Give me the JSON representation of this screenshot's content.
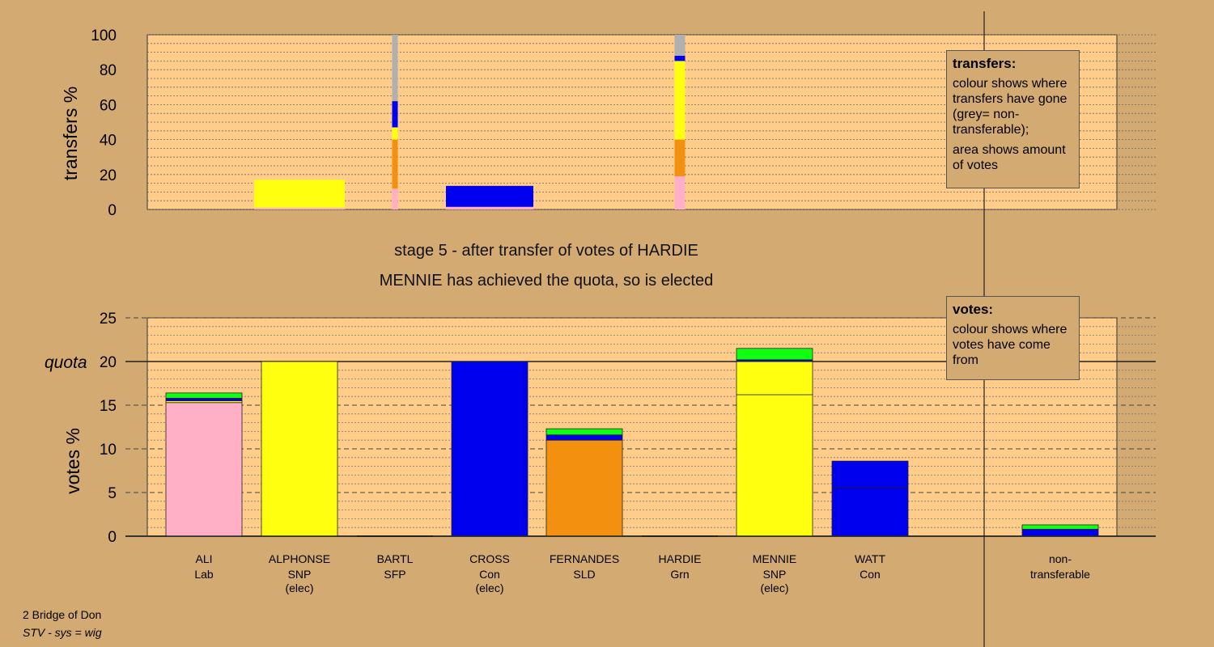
{
  "headline": {
    "stage": "stage 5 - after transfer of votes of HARDIE",
    "status": "MENNIE has achieved the quota, so is elected"
  },
  "footer": {
    "ward": "2 Bridge of Don",
    "system": "STV - sys = wig"
  },
  "legend_transfers": {
    "title": "transfers:",
    "line1": "colour shows where transfers have gone (grey= non-transferable);",
    "line2": "area shows amount of votes"
  },
  "legend_votes": {
    "title": "votes:",
    "line1": "colour shows where votes have come from"
  },
  "colors": {
    "Lab": "#ffb0c6",
    "SNP": "#ffff10",
    "SFP": "#f49010",
    "Con": "#0000ee",
    "SLD": "#f49010",
    "Grn": "#10ff10",
    "nontransferable": "#b0b0b0",
    "plot_bg": "#ffcc8a",
    "page_bg": "#d4aa73"
  },
  "chart_data": [
    {
      "type": "bar",
      "title": "",
      "ylabel": "transfers %",
      "ylim": [
        0,
        100
      ],
      "yticks": [
        0,
        20,
        40,
        60,
        80,
        100
      ],
      "note": "stacked bars; colour shows destination of transfers",
      "bars": [
        {
          "candidate": "ALPHONSE",
          "segments": [
            {
              "party": "Lab",
              "value": 1
            },
            {
              "party": "SNP",
              "value": 16
            }
          ]
        },
        {
          "candidate": "BARTL",
          "segments": [
            {
              "party": "Lab",
              "value": 12
            },
            {
              "party": "SLD",
              "value": 28
            },
            {
              "party": "SNP",
              "value": 7
            },
            {
              "party": "Con",
              "value": 15
            },
            {
              "party": "nontransferable",
              "value": 38
            }
          ]
        },
        {
          "candidate": "CROSS",
          "segments": [
            {
              "party": "Lab",
              "value": 1.5
            },
            {
              "party": "Con",
              "value": 12
            }
          ]
        },
        {
          "candidate": "HARDIE",
          "segments": [
            {
              "party": "Lab",
              "value": 19
            },
            {
              "party": "SLD",
              "value": 21
            },
            {
              "party": "SNP",
              "value": 45
            },
            {
              "party": "Con",
              "value": 3
            },
            {
              "party": "nontransferable",
              "value": 12
            }
          ]
        }
      ]
    },
    {
      "type": "bar",
      "title": "",
      "ylabel": "votes %",
      "ylim": [
        0,
        25
      ],
      "yticks": [
        0,
        5,
        10,
        15,
        20,
        25
      ],
      "quota": 20,
      "quota_label": "quota",
      "categories": [
        {
          "name": "ALI",
          "party": "Lab",
          "note": ""
        },
        {
          "name": "ALPHONSE",
          "party": "SNP",
          "note": "(elec)"
        },
        {
          "name": "BARTL",
          "party": "SFP",
          "note": ""
        },
        {
          "name": "CROSS",
          "party": "Con",
          "note": "(elec)"
        },
        {
          "name": "FERNANDES",
          "party": "SLD",
          "note": ""
        },
        {
          "name": "HARDIE",
          "party": "Grn",
          "note": ""
        },
        {
          "name": "MENNIE",
          "party": "SNP",
          "note": "(elec)"
        },
        {
          "name": "WATT",
          "party": "Con",
          "note": ""
        },
        {
          "name": "non-",
          "party": "transferable",
          "note": ""
        }
      ],
      "stacks": [
        [
          {
            "party": "Lab",
            "value": 15.3
          },
          {
            "party": "SNP",
            "value": 0.2
          },
          {
            "party": "Con",
            "value": 0.3
          },
          {
            "party": "Grn",
            "value": 0.6
          }
        ],
        [
          {
            "party": "SNP",
            "value": 20.0
          }
        ],
        [],
        [
          {
            "party": "Con",
            "value": 20.0
          }
        ],
        [
          {
            "party": "SLD",
            "value": 11.0
          },
          {
            "party": "Con",
            "value": 0.6
          },
          {
            "party": "Grn",
            "value": 0.7
          }
        ],
        [],
        [
          {
            "party": "SNP",
            "value": 16.2
          },
          {
            "party": "SNP",
            "value": 3.8
          },
          {
            "party": "Con",
            "value": 0.2
          },
          {
            "party": "Grn",
            "value": 1.3
          }
        ],
        [
          {
            "party": "Con",
            "value": 5.6
          },
          {
            "party": "Con",
            "value": 3.0
          }
        ],
        [
          {
            "party": "Con",
            "value": 0.8
          },
          {
            "party": "Grn",
            "value": 0.5
          }
        ]
      ]
    }
  ]
}
